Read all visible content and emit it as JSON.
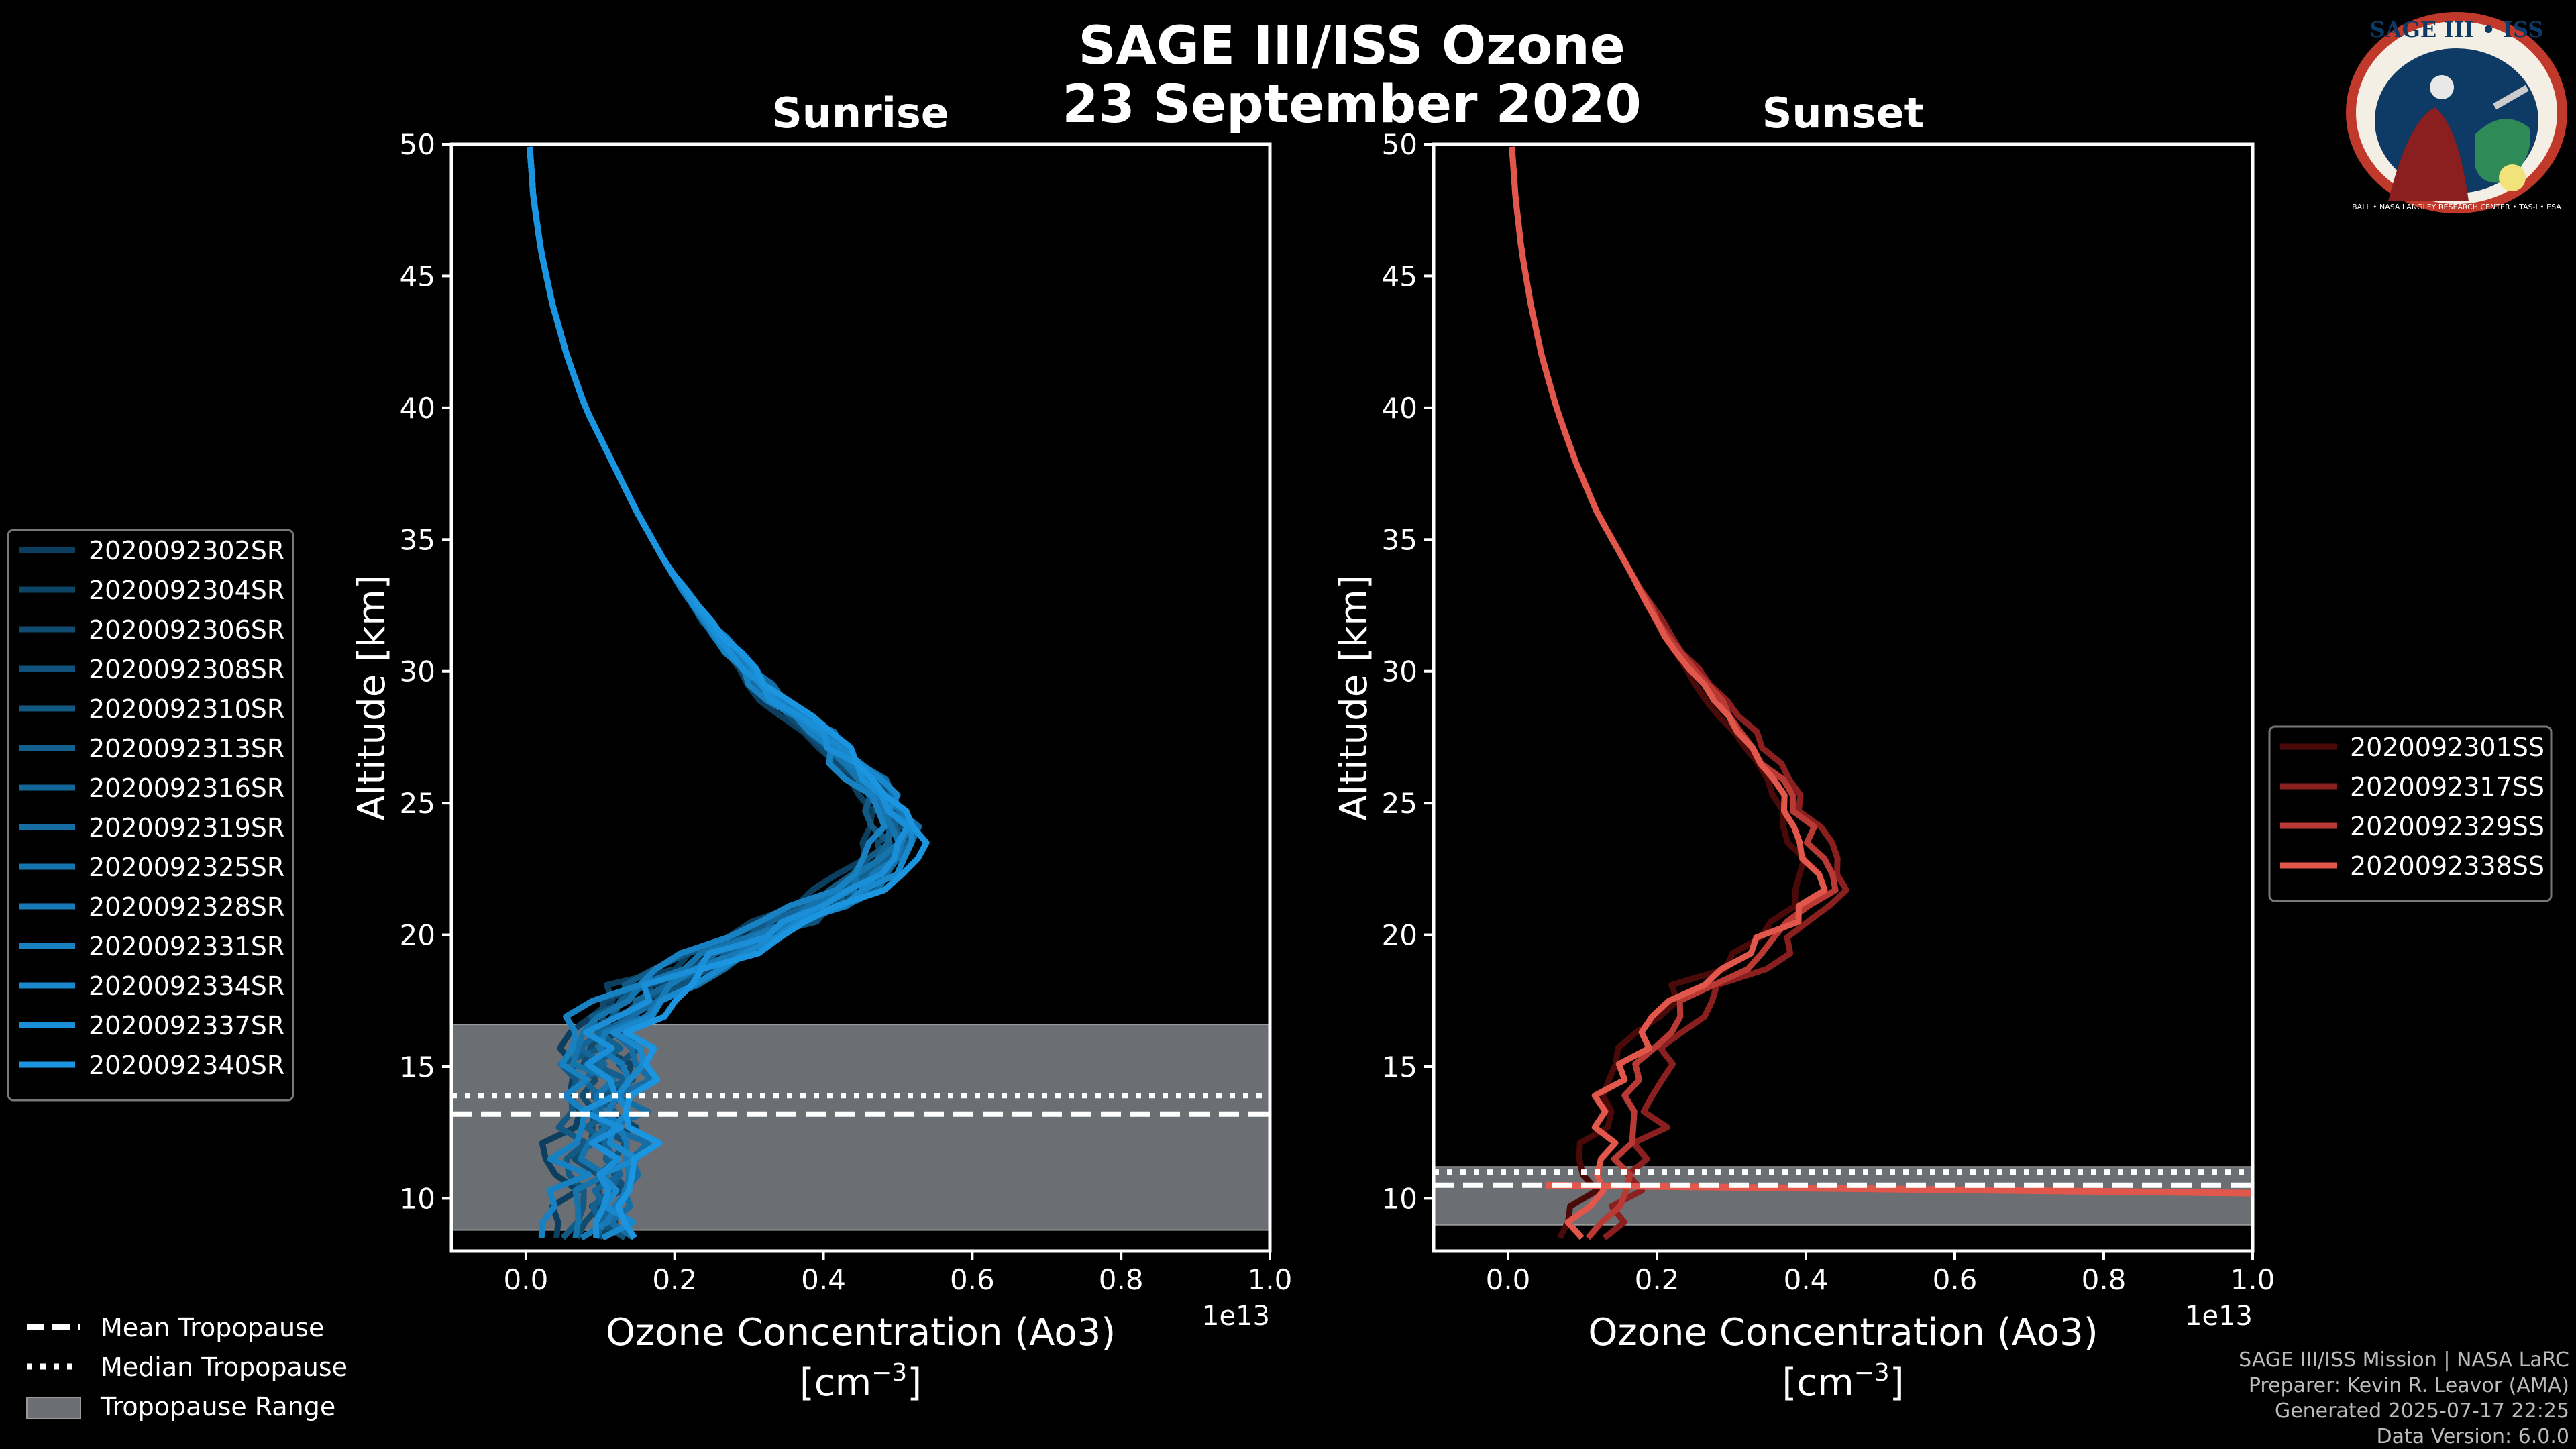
{
  "header": {
    "title_line1": "SAGE III/ISS Ozone",
    "title_line2": "23 September 2020"
  },
  "logo": {
    "text_top": "SAGE III • ISS",
    "text_bottom": "BALL • NASA LANGLEY RESEARCH CENTER • TAS-I • ESA",
    "ring_color": "#c0392b",
    "fill_color": "#0d3b66"
  },
  "footer": {
    "line1": "SAGE III/ISS Mission | NASA LaRC",
    "line2": "Preparer: Kevin R. Leavor (AMA)",
    "line3": "Generated 2025-07-17 22:25",
    "line4": "Data Version: 6.0.0"
  },
  "shared_legend": {
    "mean": "Mean Tropopause",
    "median": "Median Tropopause",
    "range": "Tropopause Range"
  },
  "chart_data": [
    {
      "type": "line",
      "title": "Sunrise",
      "xlabel_line1": "Ozone Concentration (Ao3)",
      "xlabel_line2": "[cm",
      "xlabel_sup": "−3",
      "xlabel_close": "]",
      "x_offset_label": "1e13",
      "ylabel": "Altitude [km]",
      "xlim": [
        -0.1,
        1.0
      ],
      "ylim": [
        8,
        50
      ],
      "xticks": [
        "0.0",
        "0.2",
        "0.4",
        "0.6",
        "0.8",
        "1.0"
      ],
      "xtick_values": [
        0.0,
        0.2,
        0.4,
        0.6,
        0.8,
        1.0
      ],
      "yticks": [
        "10",
        "15",
        "20",
        "25",
        "30",
        "35",
        "40",
        "45",
        "50"
      ],
      "ytick_values": [
        10,
        15,
        20,
        25,
        30,
        35,
        40,
        45,
        50
      ],
      "tropopause": {
        "mean": 13.2,
        "median": 13.9,
        "range": [
          8.8,
          16.6
        ]
      },
      "base_profile": {
        "alt": [
          8.5,
          10,
          12,
          14,
          16,
          17,
          18,
          19,
          20,
          21,
          22,
          23,
          24,
          25,
          26,
          27,
          28,
          29,
          30,
          31,
          32,
          34,
          36,
          38,
          40,
          42,
          44,
          46,
          48,
          50
        ],
        "conc": [
          0.08,
          0.1,
          0.1,
          0.1,
          0.1,
          0.12,
          0.17,
          0.24,
          0.31,
          0.39,
          0.45,
          0.49,
          0.5,
          0.48,
          0.45,
          0.42,
          0.38,
          0.33,
          0.3,
          0.27,
          0.24,
          0.19,
          0.15,
          0.115,
          0.08,
          0.055,
          0.035,
          0.02,
          0.01,
          0.005
        ]
      },
      "series": [
        {
          "name": "2020092302SR",
          "color": "#0c3f5f",
          "shift": -0.05
        },
        {
          "name": "2020092304SR",
          "color": "#0e4566",
          "shift": 0.02
        },
        {
          "name": "2020092306SR",
          "color": "#104c70",
          "shift": -0.02
        },
        {
          "name": "2020092308SR",
          "color": "#11527a",
          "shift": 0.03
        },
        {
          "name": "2020092310SR",
          "color": "#125984",
          "shift": -0.03
        },
        {
          "name": "2020092313SR",
          "color": "#13608e",
          "shift": 0.01
        },
        {
          "name": "2020092316SR",
          "color": "#146699",
          "shift": 0.0
        },
        {
          "name": "2020092319SR",
          "color": "#156da3",
          "shift": 0.04
        },
        {
          "name": "2020092325SR",
          "color": "#1674ad",
          "shift": -0.01
        },
        {
          "name": "2020092328SR",
          "color": "#177ab7",
          "shift": 0.02
        },
        {
          "name": "2020092331SR",
          "color": "#1881c2",
          "shift": -0.04
        },
        {
          "name": "2020092334SR",
          "color": "#1988cc",
          "shift": 0.03
        },
        {
          "name": "2020092337SR",
          "color": "#1a8ed6",
          "shift": 0.0
        },
        {
          "name": "2020092340SR",
          "color": "#1b95e0",
          "shift": 0.05
        }
      ]
    },
    {
      "type": "line",
      "title": "Sunset",
      "xlabel_line1": "Ozone Concentration (Ao3)",
      "xlabel_line2": "[cm",
      "xlabel_sup": "−3",
      "xlabel_close": "]",
      "x_offset_label": "1e13",
      "ylabel": "Altitude [km]",
      "xlim": [
        -0.1,
        1.0
      ],
      "ylim": [
        8,
        50
      ],
      "xticks": [
        "0.0",
        "0.2",
        "0.4",
        "0.6",
        "0.8",
        "1.0"
      ],
      "xtick_values": [
        0.0,
        0.2,
        0.4,
        0.6,
        0.8,
        1.0
      ],
      "yticks": [
        "10",
        "15",
        "20",
        "25",
        "30",
        "35",
        "40",
        "45",
        "50"
      ],
      "ytick_values": [
        10,
        15,
        20,
        25,
        30,
        35,
        40,
        45,
        50
      ],
      "tropopause": {
        "mean": 10.5,
        "median": 11.0,
        "range": [
          9.0,
          11.2
        ]
      },
      "base_profile": {
        "alt": [
          8.5,
          10,
          12,
          13,
          14,
          15,
          16,
          17,
          18,
          19,
          20,
          21,
          22,
          23,
          24,
          25,
          26,
          27,
          28,
          29,
          30,
          32,
          34,
          36,
          38,
          40,
          42,
          44,
          46,
          48,
          50
        ],
        "conc": [
          0.1,
          0.14,
          0.16,
          0.16,
          0.16,
          0.17,
          0.2,
          0.23,
          0.27,
          0.32,
          0.37,
          0.41,
          0.43,
          0.42,
          0.4,
          0.38,
          0.36,
          0.34,
          0.31,
          0.28,
          0.25,
          0.2,
          0.16,
          0.12,
          0.09,
          0.065,
          0.045,
          0.03,
          0.018,
          0.01,
          0.005
        ]
      },
      "series": [
        {
          "name": "2020092301SS",
          "color": "#4a0a0a",
          "shift": -0.04
        },
        {
          "name": "2020092317SS",
          "color": "#8a1f1f",
          "shift": 0.03
        },
        {
          "name": "2020092329SS",
          "color": "#b93a34",
          "shift": 0.0
        },
        {
          "name": "2020092338SS",
          "color": "#e2574c",
          "shift": -0.02
        }
      ]
    }
  ]
}
